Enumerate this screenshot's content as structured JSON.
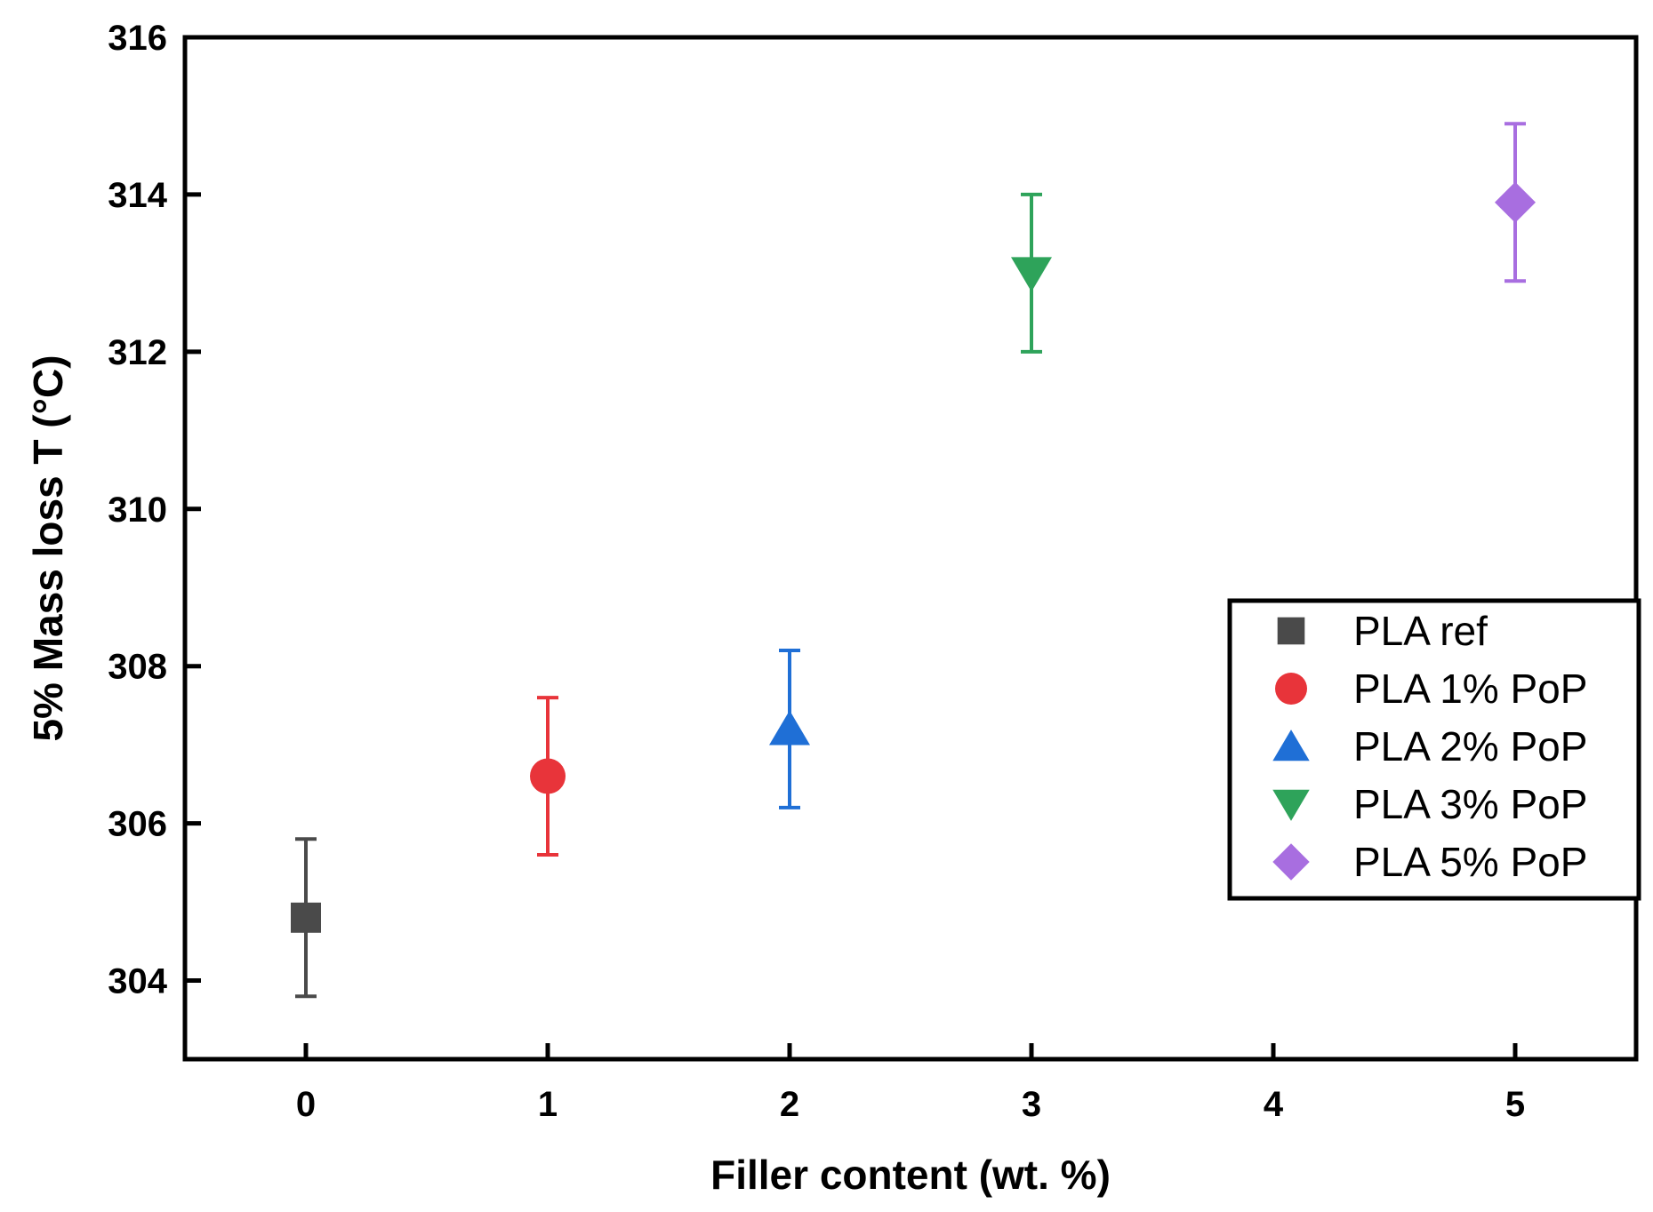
{
  "chart_data": {
    "type": "scatter",
    "title": "",
    "xlabel": "Filler content (wt. %)",
    "ylabel": "5% Mass loss T (°C)",
    "xlim": [
      -0.5,
      5.5
    ],
    "ylim": [
      303,
      316
    ],
    "xticks": [
      0,
      1,
      2,
      3,
      4,
      5
    ],
    "xtick_labels": [
      "0",
      "1",
      "2",
      "3",
      "4",
      "5"
    ],
    "yticks": [
      304,
      306,
      308,
      310,
      312,
      314,
      316
    ],
    "ytick_labels": [
      "304",
      "306",
      "308",
      "310",
      "312",
      "314",
      "316"
    ],
    "grid": false,
    "legend_position": "right",
    "series": [
      {
        "name": "PLA ref",
        "marker": "square",
        "color": "#4a4a4a",
        "x": 0,
        "y": 304.8,
        "error": 1.0
      },
      {
        "name": "PLA 1% PoP",
        "marker": "circle",
        "color": "#e8343a",
        "x": 1,
        "y": 306.6,
        "error": 1.0
      },
      {
        "name": "PLA 2% PoP",
        "marker": "triangle-up",
        "color": "#1f6fd6",
        "x": 2,
        "y": 307.2,
        "error": 1.0
      },
      {
        "name": "PLA 3% PoP",
        "marker": "triangle-down",
        "color": "#2ea35a",
        "x": 3,
        "y": 313.0,
        "error": 1.0
      },
      {
        "name": "PLA 5% PoP",
        "marker": "diamond",
        "color": "#a86ee0",
        "x": 5,
        "y": 313.9,
        "error": 1.0
      }
    ]
  }
}
